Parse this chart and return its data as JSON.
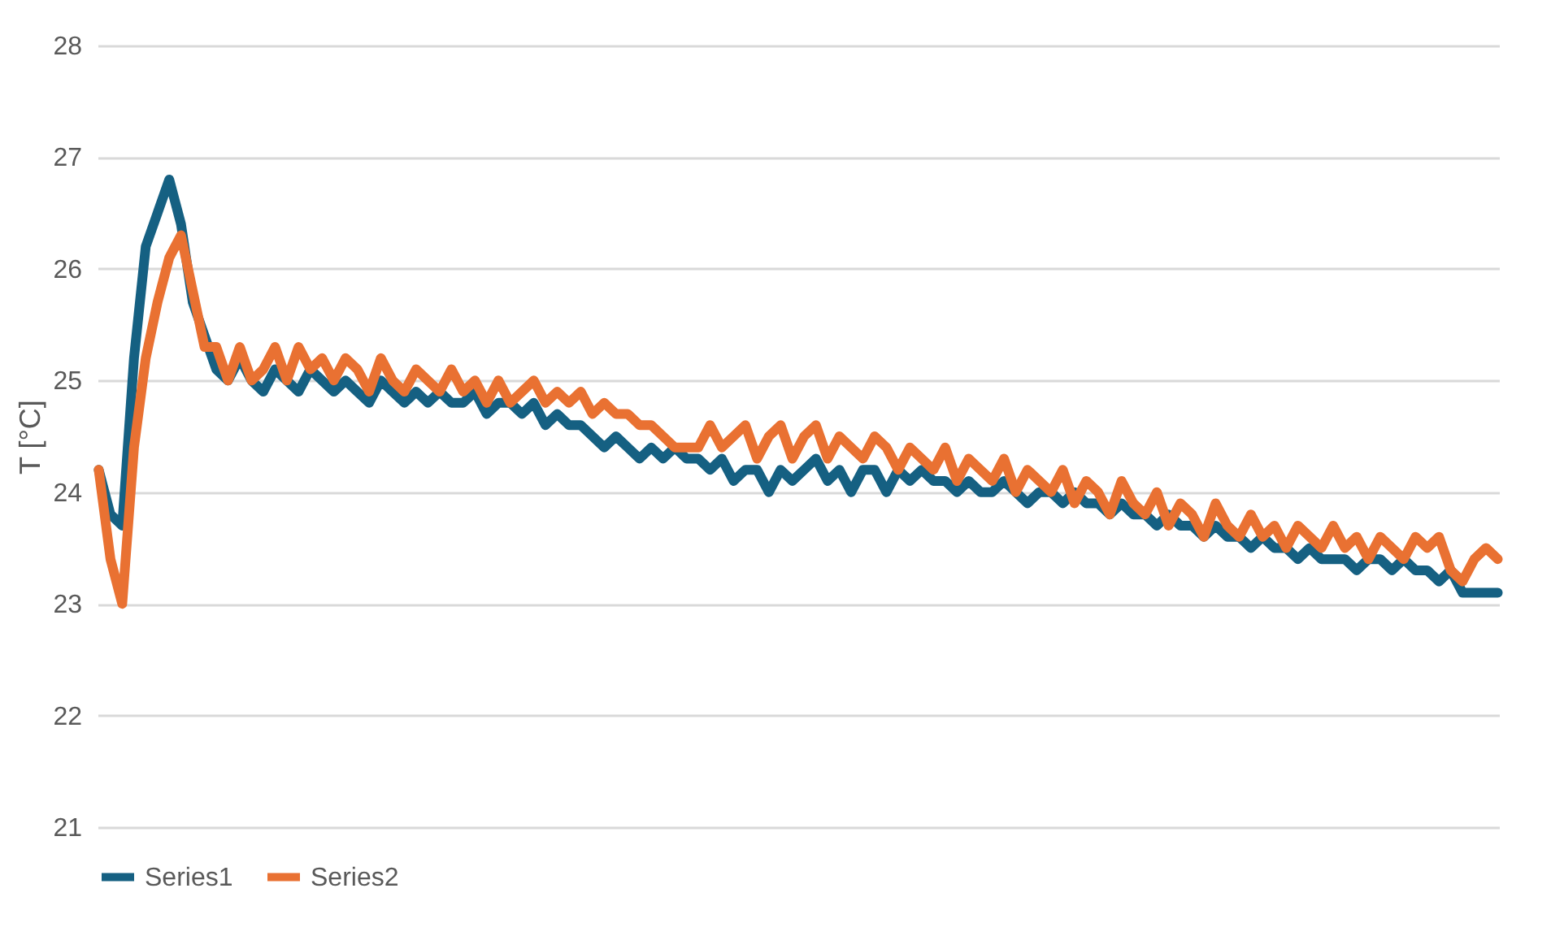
{
  "chart_data": {
    "type": "line",
    "ylabel": "T [°C]",
    "ylim": [
      21,
      28
    ],
    "yticks": [
      21,
      22,
      23,
      24,
      25,
      26,
      27,
      28
    ],
    "grid": "y",
    "legend": "bottom",
    "tick_labels": "y",
    "categories": [
      null,
      null,
      null,
      null,
      null,
      null,
      null,
      null,
      null,
      null,
      null,
      null,
      null,
      null,
      null,
      null,
      null,
      null,
      null,
      null,
      null,
      null,
      null,
      null,
      null,
      null,
      null,
      null,
      null,
      null,
      null,
      null,
      null,
      null,
      null,
      null,
      null,
      null,
      null,
      null,
      null,
      null,
      null,
      null,
      null,
      null,
      null,
      null,
      null,
      null,
      null,
      null,
      null,
      null,
      null,
      null,
      null,
      null,
      null,
      null,
      null,
      null,
      null,
      null,
      null,
      null,
      null,
      null,
      null,
      null,
      null,
      null,
      null,
      null,
      null,
      null,
      null,
      null,
      null,
      null,
      null,
      null,
      null,
      null,
      null,
      null,
      null,
      null,
      null,
      null,
      null,
      null,
      null,
      null,
      null,
      null,
      null,
      null,
      null,
      null,
      null,
      null,
      null,
      null,
      null,
      null,
      null,
      null,
      null,
      null,
      null,
      null,
      null,
      null,
      null,
      null,
      null,
      null,
      null,
      null
    ],
    "series": [
      {
        "name": "Series1",
        "color": "#156082",
        "values": [
          24.2,
          23.8,
          23.7,
          25.2,
          26.2,
          26.5,
          26.8,
          26.4,
          25.7,
          25.4,
          25.1,
          25.0,
          25.2,
          25.0,
          24.9,
          25.1,
          25.0,
          24.9,
          25.1,
          25.0,
          24.9,
          25.0,
          24.9,
          24.8,
          25.0,
          24.9,
          24.8,
          24.9,
          24.8,
          24.9,
          24.8,
          24.8,
          24.9,
          24.7,
          24.8,
          24.8,
          24.7,
          24.8,
          24.6,
          24.7,
          24.6,
          24.6,
          24.5,
          24.4,
          24.5,
          24.4,
          24.3,
          24.4,
          24.3,
          24.4,
          24.3,
          24.3,
          24.2,
          24.3,
          24.1,
          24.2,
          24.2,
          24.0,
          24.2,
          24.1,
          24.2,
          24.3,
          24.1,
          24.2,
          24.0,
          24.2,
          24.2,
          24.0,
          24.2,
          24.1,
          24.2,
          24.1,
          24.1,
          24.0,
          24.1,
          24.0,
          24.0,
          24.1,
          24.0,
          23.9,
          24.0,
          24.0,
          23.9,
          24.0,
          23.9,
          23.9,
          23.8,
          23.9,
          23.8,
          23.8,
          23.7,
          23.8,
          23.7,
          23.7,
          23.6,
          23.7,
          23.6,
          23.6,
          23.5,
          23.6,
          23.5,
          23.5,
          23.4,
          23.5,
          23.4,
          23.4,
          23.4,
          23.3,
          23.4,
          23.4,
          23.3,
          23.4,
          23.3,
          23.3,
          23.2,
          23.3,
          23.1,
          23.1,
          23.1,
          23.1
        ]
      },
      {
        "name": "Series2",
        "color": "#e97132",
        "values": [
          24.2,
          23.4,
          23.0,
          24.4,
          25.2,
          25.7,
          26.1,
          26.3,
          25.8,
          25.3,
          25.3,
          25.0,
          25.3,
          25.0,
          25.1,
          25.3,
          25.0,
          25.3,
          25.1,
          25.2,
          25.0,
          25.2,
          25.1,
          24.9,
          25.2,
          25.0,
          24.9,
          25.1,
          25.0,
          24.9,
          25.1,
          24.9,
          25.0,
          24.8,
          25.0,
          24.8,
          24.9,
          25.0,
          24.8,
          24.9,
          24.8,
          24.9,
          24.7,
          24.8,
          24.7,
          24.7,
          24.6,
          24.6,
          24.5,
          24.4,
          24.4,
          24.4,
          24.6,
          24.4,
          24.5,
          24.6,
          24.3,
          24.5,
          24.6,
          24.3,
          24.5,
          24.6,
          24.3,
          24.5,
          24.4,
          24.3,
          24.5,
          24.4,
          24.2,
          24.4,
          24.3,
          24.2,
          24.4,
          24.1,
          24.3,
          24.2,
          24.1,
          24.3,
          24.0,
          24.2,
          24.1,
          24.0,
          24.2,
          23.9,
          24.1,
          24.0,
          23.8,
          24.1,
          23.9,
          23.8,
          24.0,
          23.7,
          23.9,
          23.8,
          23.6,
          23.9,
          23.7,
          23.6,
          23.8,
          23.6,
          23.7,
          23.5,
          23.7,
          23.6,
          23.5,
          23.7,
          23.5,
          23.6,
          23.4,
          23.6,
          23.5,
          23.4,
          23.6,
          23.5,
          23.6,
          23.3,
          23.2,
          23.4,
          23.5,
          23.4
        ]
      }
    ]
  }
}
